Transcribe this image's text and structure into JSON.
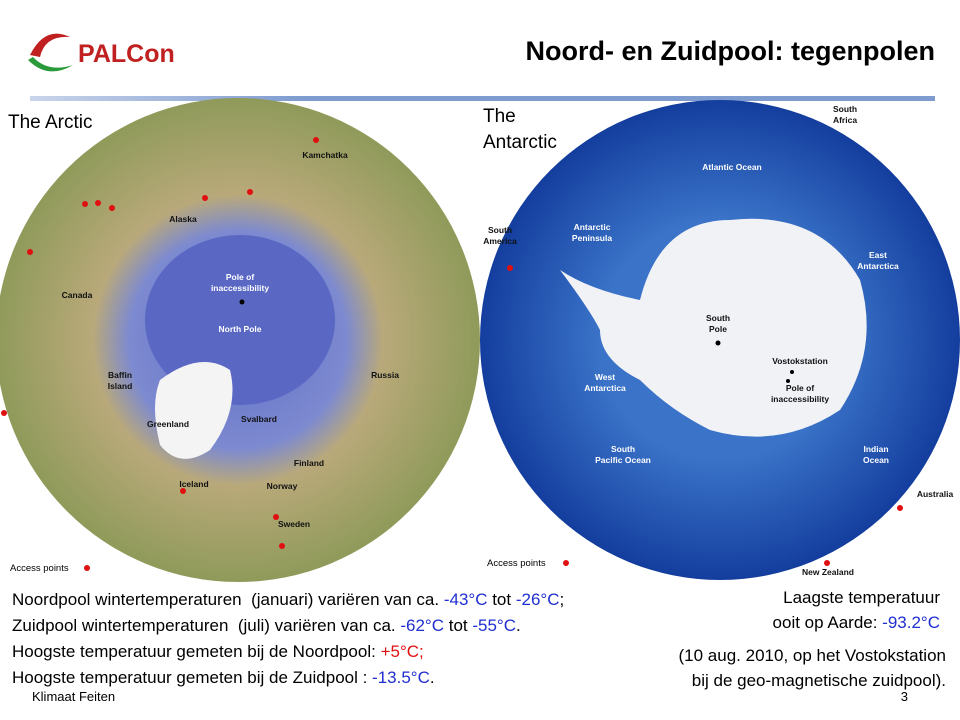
{
  "header": {
    "logo": "PALCon",
    "title": "Noord- en Zuidpool: tegenpolen"
  },
  "arctic": {
    "heading": "The Arctic",
    "labels": [
      [
        "Kamchatka"
      ],
      [
        "Alaska"
      ],
      [
        "Canada"
      ],
      [
        "Pole of",
        "inaccessibility"
      ],
      [
        "North Pole"
      ],
      [
        "Baffin",
        "Island"
      ],
      [
        "Greenland"
      ],
      [
        "Svalbard"
      ],
      [
        "Russia"
      ],
      [
        "Finland"
      ],
      [
        "Iceland"
      ],
      [
        "Norway"
      ],
      [
        "Sweden"
      ]
    ],
    "legend": "Access points"
  },
  "antarctic": {
    "heading": [
      "The",
      "Antarctic"
    ],
    "labels": [
      [
        "South",
        "Africa"
      ],
      [
        "Atlantic Ocean"
      ],
      [
        "South",
        "America"
      ],
      [
        "Antarctic",
        "Peninsula"
      ],
      [
        "East",
        "Antarctica"
      ],
      [
        "South",
        "Pole"
      ],
      [
        "Vostokstation"
      ],
      [
        "Pole of",
        "inaccessibility"
      ],
      [
        "West",
        "Antarctica"
      ],
      [
        "South",
        "Pacific Ocean"
      ],
      [
        "Indian",
        "Ocean"
      ],
      [
        "Australia"
      ],
      [
        "New Zealand"
      ]
    ],
    "legend": "Access points"
  },
  "facts": [
    [
      "Noordpool wintertemperaturen  (januari) variëren van ca. ",
      "-43°C",
      " tot ",
      "-26°C",
      ";"
    ],
    [
      "Zuidpool wintertemperaturen  (juli) variëren van ca. ",
      "-62°C",
      " tot ",
      "-55°C",
      "."
    ],
    [
      "Hoogste temperatuur gemeten bij de Noordpool: ",
      "+5°C;"
    ],
    [
      "Hoogste temperatuur gemeten bij de Zuidpool : ",
      "-13.5°C",
      "."
    ]
  ],
  "record": {
    "lines": [
      [
        "Laagste temperatuur"
      ],
      [
        "ooit op Aarde: ",
        "-93.2°C"
      ]
    ],
    "note": [
      "(10 aug. 2010, op het Vostokstation",
      "bij de geo-magnetische zuidpool)."
    ]
  },
  "footer": {
    "left": "Klimaat Feiten",
    "page": "3"
  }
}
